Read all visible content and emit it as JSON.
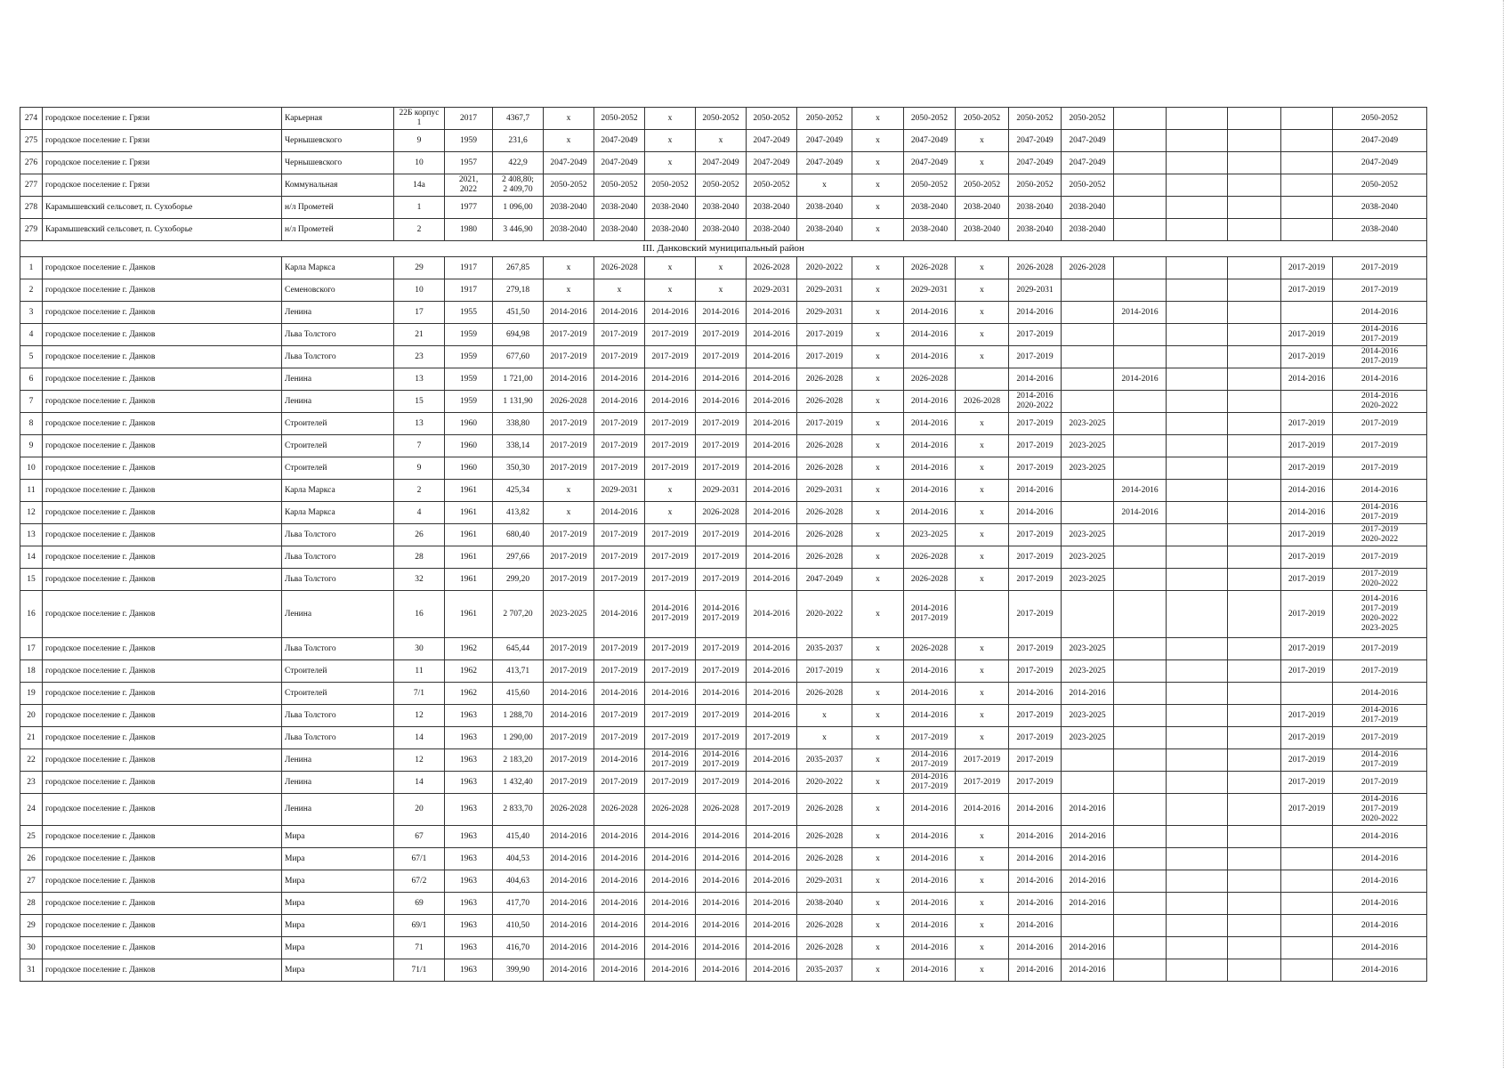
{
  "section_title": "III. Данковский муниципальный район",
  "rows_before": [
    [
      "274",
      "городское поселение г. Грязи",
      "Карьерная",
      "22Б корпус\n1",
      "2017",
      "4367,7",
      "x",
      "2050-2052",
      "x",
      "2050-2052",
      "2050-2052",
      "2050-2052",
      "x",
      "2050-2052",
      "2050-2052",
      "2050-2052",
      "2050-2052",
      "",
      "",
      "",
      "",
      "2050-2052"
    ],
    [
      "275",
      "городское поселение г. Грязи",
      "Чернышевского",
      "9",
      "1959",
      "231,6",
      "x",
      "2047-2049",
      "x",
      "x",
      "2047-2049",
      "2047-2049",
      "x",
      "2047-2049",
      "x",
      "2047-2049",
      "2047-2049",
      "",
      "",
      "",
      "",
      "2047-2049"
    ],
    [
      "276",
      "городское поселение г. Грязи",
      "Чернышевского",
      "10",
      "1957",
      "422,9",
      "2047-2049",
      "2047-2049",
      "x",
      "2047-2049",
      "2047-2049",
      "2047-2049",
      "x",
      "2047-2049",
      "x",
      "2047-2049",
      "2047-2049",
      "",
      "",
      "",
      "",
      "2047-2049"
    ],
    [
      "277",
      "городское поселение г. Грязи",
      "Коммунальная",
      "14а",
      "2021,\n2022",
      "2 408,80;\n2 409,70",
      "2050-2052",
      "2050-2052",
      "2050-2052",
      "2050-2052",
      "2050-2052",
      "x",
      "x",
      "2050-2052",
      "2050-2052",
      "2050-2052",
      "2050-2052",
      "",
      "",
      "",
      "",
      "2050-2052"
    ],
    [
      "278",
      "Карамышевский сельсовет, п. Сухоборье",
      "н/л Прометей",
      "1",
      "1977",
      "1 096,00",
      "2038-2040",
      "2038-2040",
      "2038-2040",
      "2038-2040",
      "2038-2040",
      "2038-2040",
      "x",
      "2038-2040",
      "2038-2040",
      "2038-2040",
      "2038-2040",
      "",
      "",
      "",
      "",
      "2038-2040"
    ],
    [
      "279",
      "Карамышевский сельсовет, п. Сухоборье",
      "н/л Прометей",
      "2",
      "1980",
      "3 446,90",
      "2038-2040",
      "2038-2040",
      "2038-2040",
      "2038-2040",
      "2038-2040",
      "2038-2040",
      "x",
      "2038-2040",
      "2038-2040",
      "2038-2040",
      "2038-2040",
      "",
      "",
      "",
      "",
      "2038-2040"
    ]
  ],
  "rows_after": [
    [
      "1",
      "городское поселение г. Данков",
      "Карла Маркса",
      "29",
      "1917",
      "267,85",
      "x",
      "2026-2028",
      "x",
      "x",
      "2026-2028",
      "2020-2022",
      "x",
      "2026-2028",
      "x",
      "2026-2028",
      "2026-2028",
      "",
      "",
      "",
      "2017-2019",
      "2017-2019"
    ],
    [
      "2",
      "городское поселение г. Данков",
      "Семеновского",
      "10",
      "1917",
      "279,18",
      "x",
      "x",
      "x",
      "x",
      "2029-2031",
      "2029-2031",
      "x",
      "2029-2031",
      "x",
      "2029-2031",
      "",
      "",
      "",
      "",
      "2017-2019",
      "2017-2019"
    ],
    [
      "3",
      "городское поселение г. Данков",
      "Ленина",
      "17",
      "1955",
      "451,50",
      "2014-2016",
      "2014-2016",
      "2014-2016",
      "2014-2016",
      "2014-2016",
      "2029-2031",
      "x",
      "2014-2016",
      "x",
      "2014-2016",
      "",
      "2014-2016",
      "",
      "",
      "",
      "2014-2016"
    ],
    [
      "4",
      "городское поселение г. Данков",
      "Льва Толстого",
      "21",
      "1959",
      "694,98",
      "2017-2019",
      "2017-2019",
      "2017-2019",
      "2017-2019",
      "2014-2016",
      "2017-2019",
      "x",
      "2014-2016",
      "x",
      "2017-2019",
      "",
      "",
      "",
      "",
      "2017-2019",
      "2014-2016\n2017-2019"
    ],
    [
      "5",
      "городское поселение г. Данков",
      "Льва Толстого",
      "23",
      "1959",
      "677,60",
      "2017-2019",
      "2017-2019",
      "2017-2019",
      "2017-2019",
      "2014-2016",
      "2017-2019",
      "x",
      "2014-2016",
      "x",
      "2017-2019",
      "",
      "",
      "",
      "",
      "2017-2019",
      "2014-2016\n2017-2019"
    ],
    [
      "6",
      "городское поселение г. Данков",
      "Ленина",
      "13",
      "1959",
      "1 721,00",
      "2014-2016",
      "2014-2016",
      "2014-2016",
      "2014-2016",
      "2014-2016",
      "2026-2028",
      "x",
      "2026-2028",
      "",
      "2014-2016",
      "",
      "2014-2016",
      "",
      "",
      "2014-2016",
      "2014-2016"
    ],
    [
      "7",
      "городское поселение г. Данков",
      "Ленина",
      "15",
      "1959",
      "1 131,90",
      "2026-2028",
      "2014-2016",
      "2014-2016",
      "2014-2016",
      "2014-2016",
      "2026-2028",
      "x",
      "2014-2016",
      "2026-2028",
      "2014-2016\n2020-2022",
      "",
      "",
      "",
      "",
      "",
      "2014-2016\n2020-2022"
    ],
    [
      "8",
      "городское поселение г. Данков",
      "Строителей",
      "13",
      "1960",
      "338,80",
      "2017-2019",
      "2017-2019",
      "2017-2019",
      "2017-2019",
      "2014-2016",
      "2017-2019",
      "x",
      "2014-2016",
      "x",
      "2017-2019",
      "2023-2025",
      "",
      "",
      "",
      "2017-2019",
      "2017-2019"
    ],
    [
      "9",
      "городское поселение г. Данков",
      "Строителей",
      "7",
      "1960",
      "338,14",
      "2017-2019",
      "2017-2019",
      "2017-2019",
      "2017-2019",
      "2014-2016",
      "2026-2028",
      "x",
      "2014-2016",
      "x",
      "2017-2019",
      "2023-2025",
      "",
      "",
      "",
      "2017-2019",
      "2017-2019"
    ],
    [
      "10",
      "городское поселение г. Данков",
      "Строителей",
      "9",
      "1960",
      "350,30",
      "2017-2019",
      "2017-2019",
      "2017-2019",
      "2017-2019",
      "2014-2016",
      "2026-2028",
      "x",
      "2014-2016",
      "x",
      "2017-2019",
      "2023-2025",
      "",
      "",
      "",
      "2017-2019",
      "2017-2019"
    ],
    [
      "11",
      "городское поселение г. Данков",
      "Карла Маркса",
      "2",
      "1961",
      "425,34",
      "x",
      "2029-2031",
      "x",
      "2029-2031",
      "2014-2016",
      "2029-2031",
      "x",
      "2014-2016",
      "x",
      "2014-2016",
      "",
      "2014-2016",
      "",
      "",
      "2014-2016",
      "2014-2016"
    ],
    [
      "12",
      "городское поселение г. Данков",
      "Карла Маркса",
      "4",
      "1961",
      "413,82",
      "x",
      "2014-2016",
      "x",
      "2026-2028",
      "2014-2016",
      "2026-2028",
      "x",
      "2014-2016",
      "x",
      "2014-2016",
      "",
      "2014-2016",
      "",
      "",
      "2014-2016",
      "2014-2016\n2017-2019"
    ],
    [
      "13",
      "городское поселение г. Данков",
      "Льва Толстого",
      "26",
      "1961",
      "680,40",
      "2017-2019",
      "2017-2019",
      "2017-2019",
      "2017-2019",
      "2014-2016",
      "2026-2028",
      "x",
      "2023-2025",
      "x",
      "2017-2019",
      "2023-2025",
      "",
      "",
      "",
      "2017-2019",
      "2017-2019\n2020-2022"
    ],
    [
      "14",
      "городское поселение г. Данков",
      "Льва Толстого",
      "28",
      "1961",
      "297,66",
      "2017-2019",
      "2017-2019",
      "2017-2019",
      "2017-2019",
      "2014-2016",
      "2026-2028",
      "x",
      "2026-2028",
      "x",
      "2017-2019",
      "2023-2025",
      "",
      "",
      "",
      "2017-2019",
      "2017-2019"
    ],
    [
      "15",
      "городское поселение г. Данков",
      "Льва Толстого",
      "32",
      "1961",
      "299,20",
      "2017-2019",
      "2017-2019",
      "2017-2019",
      "2017-2019",
      "2014-2016",
      "2047-2049",
      "x",
      "2026-2028",
      "x",
      "2017-2019",
      "2023-2025",
      "",
      "",
      "",
      "2017-2019",
      "2017-2019\n2020-2022"
    ],
    [
      "16",
      "городское поселение г. Данков",
      "Ленина",
      "16",
      "1961",
      "2 707,20",
      "2023-2025",
      "2014-2016",
      "2014-2016\n2017-2019",
      "2014-2016\n2017-2019",
      "2014-2016",
      "2020-2022",
      "x",
      "2014-2016\n2017-2019",
      "",
      "2017-2019",
      "",
      "",
      "",
      "",
      "2017-2019",
      "2014-2016\n2017-2019\n2020-2022\n2023-2025"
    ],
    [
      "17",
      "городское поселение г. Данков",
      "Льва Толстого",
      "30",
      "1962",
      "645,44",
      "2017-2019",
      "2017-2019",
      "2017-2019",
      "2017-2019",
      "2014-2016",
      "2035-2037",
      "x",
      "2026-2028",
      "x",
      "2017-2019",
      "2023-2025",
      "",
      "",
      "",
      "2017-2019",
      "2017-2019"
    ],
    [
      "18",
      "городское поселение г. Данков",
      "Строителей",
      "11",
      "1962",
      "413,71",
      "2017-2019",
      "2017-2019",
      "2017-2019",
      "2017-2019",
      "2014-2016",
      "2017-2019",
      "x",
      "2014-2016",
      "x",
      "2017-2019",
      "2023-2025",
      "",
      "",
      "",
      "2017-2019",
      "2017-2019"
    ],
    [
      "19",
      "городское поселение г. Данков",
      "Строителей",
      "7/1",
      "1962",
      "415,60",
      "2014-2016",
      "2014-2016",
      "2014-2016",
      "2014-2016",
      "2014-2016",
      "2026-2028",
      "x",
      "2014-2016",
      "x",
      "2014-2016",
      "2014-2016",
      "",
      "",
      "",
      "",
      "2014-2016"
    ],
    [
      "20",
      "городское поселение г. Данков",
      "Льва Толстого",
      "12",
      "1963",
      "1 288,70",
      "2014-2016",
      "2017-2019",
      "2017-2019",
      "2017-2019",
      "2014-2016",
      "x",
      "x",
      "2014-2016",
      "x",
      "2017-2019",
      "2023-2025",
      "",
      "",
      "",
      "2017-2019",
      "2014-2016\n2017-2019"
    ],
    [
      "21",
      "городское поселение г. Данков",
      "Льва Толстого",
      "14",
      "1963",
      "1 290,00",
      "2017-2019",
      "2017-2019",
      "2017-2019",
      "2017-2019",
      "2017-2019",
      "x",
      "x",
      "2017-2019",
      "x",
      "2017-2019",
      "2023-2025",
      "",
      "",
      "",
      "2017-2019",
      "2017-2019"
    ],
    [
      "22",
      "городское поселение г. Данков",
      "Ленина",
      "12",
      "1963",
      "2 183,20",
      "2017-2019",
      "2014-2016",
      "2014-2016\n2017-2019",
      "2014-2016\n2017-2019",
      "2014-2016",
      "2035-2037",
      "x",
      "2014-2016\n2017-2019",
      "2017-2019",
      "2017-2019",
      "",
      "",
      "",
      "",
      "2017-2019",
      "2014-2016\n2017-2019"
    ],
    [
      "23",
      "городское поселение г. Данков",
      "Ленина",
      "14",
      "1963",
      "1 432,40",
      "2017-2019",
      "2017-2019",
      "2017-2019",
      "2017-2019",
      "2014-2016",
      "2020-2022",
      "x",
      "2014-2016\n2017-2019",
      "2017-2019",
      "2017-2019",
      "",
      "",
      "",
      "",
      "2017-2019",
      "2017-2019"
    ],
    [
      "24",
      "городское поселение г. Данков",
      "Ленина",
      "20",
      "1963",
      "2 833,70",
      "2026-2028",
      "2026-2028",
      "2026-2028",
      "2026-2028",
      "2017-2019",
      "2026-2028",
      "x",
      "2014-2016",
      "2014-2016",
      "2014-2016",
      "2014-2016",
      "",
      "",
      "",
      "2017-2019",
      "2014-2016\n2017-2019\n2020-2022"
    ],
    [
      "25",
      "городское поселение г. Данков",
      "Мира",
      "67",
      "1963",
      "415,40",
      "2014-2016",
      "2014-2016",
      "2014-2016",
      "2014-2016",
      "2014-2016",
      "2026-2028",
      "x",
      "2014-2016",
      "x",
      "2014-2016",
      "2014-2016",
      "",
      "",
      "",
      "",
      "2014-2016"
    ],
    [
      "26",
      "городское поселение г. Данков",
      "Мира",
      "67/1",
      "1963",
      "404,53",
      "2014-2016",
      "2014-2016",
      "2014-2016",
      "2014-2016",
      "2014-2016",
      "2026-2028",
      "x",
      "2014-2016",
      "x",
      "2014-2016",
      "2014-2016",
      "",
      "",
      "",
      "",
      "2014-2016"
    ],
    [
      "27",
      "городское поселение г. Данков",
      "Мира",
      "67/2",
      "1963",
      "404,63",
      "2014-2016",
      "2014-2016",
      "2014-2016",
      "2014-2016",
      "2014-2016",
      "2029-2031",
      "x",
      "2014-2016",
      "x",
      "2014-2016",
      "2014-2016",
      "",
      "",
      "",
      "",
      "2014-2016"
    ],
    [
      "28",
      "городское поселение г. Данков",
      "Мира",
      "69",
      "1963",
      "417,70",
      "2014-2016",
      "2014-2016",
      "2014-2016",
      "2014-2016",
      "2014-2016",
      "2038-2040",
      "x",
      "2014-2016",
      "x",
      "2014-2016",
      "2014-2016",
      "",
      "",
      "",
      "",
      "2014-2016"
    ],
    [
      "29",
      "городское поселение г. Данков",
      "Мира",
      "69/1",
      "1963",
      "410,50",
      "2014-2016",
      "2014-2016",
      "2014-2016",
      "2014-2016",
      "2014-2016",
      "2026-2028",
      "x",
      "2014-2016",
      "x",
      "2014-2016",
      "",
      "",
      "",
      "",
      "",
      "2014-2016"
    ],
    [
      "30",
      "городское поселение г. Данков",
      "Мира",
      "71",
      "1963",
      "416,70",
      "2014-2016",
      "2014-2016",
      "2014-2016",
      "2014-2016",
      "2014-2016",
      "2026-2028",
      "x",
      "2014-2016",
      "x",
      "2014-2016",
      "2014-2016",
      "",
      "",
      "",
      "",
      "2014-2016"
    ],
    [
      "31",
      "городское поселение г. Данков",
      "Мира",
      "71/1",
      "1963",
      "399,90",
      "2014-2016",
      "2014-2016",
      "2014-2016",
      "2014-2016",
      "2014-2016",
      "2035-2037",
      "x",
      "2014-2016",
      "x",
      "2014-2016",
      "2014-2016",
      "",
      "",
      "",
      "",
      "2014-2016"
    ]
  ]
}
